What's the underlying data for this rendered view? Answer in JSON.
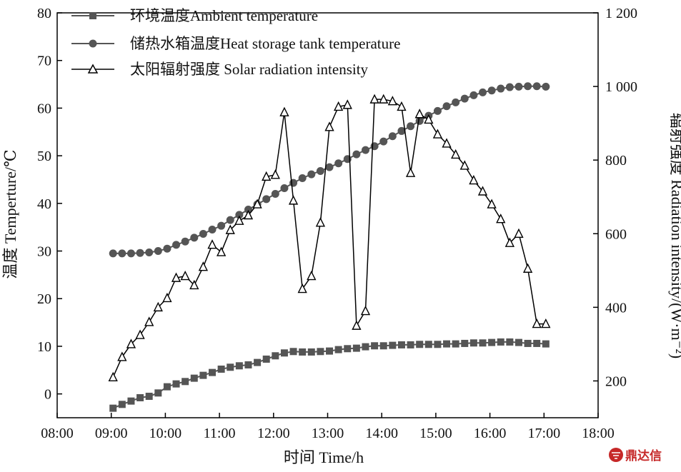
{
  "chart_data": {
    "type": "line",
    "xlabel": "时间 Time/h",
    "ylabel": "温度 Temperture/℃",
    "y2label": "辐射强度 Radiation intensity/(W·m⁻²)",
    "xlim": [
      "08:00",
      "18:00"
    ],
    "ylim": [
      -5,
      80
    ],
    "y2lim": [
      100,
      1200
    ],
    "x_ticks": [
      "08:00",
      "09:00",
      "10:00",
      "11:00",
      "12:00",
      "13:00",
      "14:00",
      "15:00",
      "16:00",
      "17:00",
      "18:00"
    ],
    "y_ticks": [
      0,
      10,
      20,
      30,
      40,
      50,
      60,
      70,
      80
    ],
    "y2_ticks": [
      200,
      400,
      600,
      800,
      "1 000",
      "1 200"
    ],
    "grid": false,
    "legend_position": "top-left",
    "series": [
      {
        "name": "环境温度Ambient temperature",
        "marker": "square",
        "axis": "left",
        "color": "#555555",
        "x": [
          "09:02",
          "09:12",
          "09:22",
          "09:32",
          "09:42",
          "09:52",
          "10:02",
          "10:12",
          "10:22",
          "10:32",
          "10:42",
          "10:52",
          "11:02",
          "11:12",
          "11:22",
          "11:32",
          "11:42",
          "11:52",
          "12:02",
          "12:12",
          "12:22",
          "12:32",
          "12:42",
          "12:52",
          "13:02",
          "13:12",
          "13:22",
          "13:32",
          "13:42",
          "13:52",
          "14:02",
          "14:12",
          "14:22",
          "14:32",
          "14:42",
          "14:52",
          "15:02",
          "15:12",
          "15:22",
          "15:32",
          "15:42",
          "15:52",
          "16:02",
          "16:12",
          "16:22",
          "16:32",
          "16:42",
          "16:52",
          "17:02"
        ],
        "values": [
          -3,
          -2.2,
          -1.5,
          -0.8,
          -0.5,
          0.2,
          1.5,
          2.1,
          2.6,
          3.3,
          3.9,
          4.5,
          5.2,
          5.6,
          5.9,
          6.1,
          6.6,
          7.3,
          8.0,
          8.6,
          8.9,
          8.8,
          8.8,
          8.9,
          9.0,
          9.3,
          9.5,
          9.6,
          9.9,
          10.1,
          10.1,
          10.2,
          10.3,
          10.3,
          10.4,
          10.4,
          10.4,
          10.5,
          10.5,
          10.6,
          10.7,
          10.7,
          10.8,
          10.9,
          10.9,
          10.8,
          10.6,
          10.6,
          10.5
        ]
      },
      {
        "name": "储热水箱温度Heat storage tank temperature",
        "marker": "circle",
        "axis": "left",
        "color": "#555555",
        "x": [
          "09:02",
          "09:12",
          "09:22",
          "09:32",
          "09:42",
          "09:52",
          "10:02",
          "10:12",
          "10:22",
          "10:32",
          "10:42",
          "10:52",
          "11:02",
          "11:12",
          "11:22",
          "11:32",
          "11:42",
          "11:52",
          "12:02",
          "12:12",
          "12:22",
          "12:32",
          "12:42",
          "12:52",
          "13:02",
          "13:12",
          "13:22",
          "13:32",
          "13:42",
          "13:52",
          "14:02",
          "14:12",
          "14:22",
          "14:32",
          "14:42",
          "14:52",
          "15:02",
          "15:12",
          "15:22",
          "15:32",
          "15:42",
          "15:52",
          "16:02",
          "16:12",
          "16:22",
          "16:32",
          "16:42",
          "16:52",
          "17:02"
        ],
        "values": [
          29.5,
          29.5,
          29.5,
          29.6,
          29.7,
          30.0,
          30.5,
          31.3,
          32.0,
          32.8,
          33.6,
          34.5,
          35.3,
          36.5,
          37.6,
          38.7,
          39.8,
          40.9,
          42.0,
          43.2,
          44.3,
          45.3,
          46.1,
          46.8,
          47.6,
          48.4,
          49.3,
          50.3,
          51.2,
          52.0,
          53.0,
          54.1,
          55.2,
          56.2,
          57.3,
          58.4,
          59.4,
          60.4,
          61.2,
          62.0,
          62.7,
          63.3,
          63.7,
          64.1,
          64.4,
          64.5,
          64.6,
          64.6,
          64.5
        ]
      },
      {
        "name": "太阳辐射强度 Solar radiation intensity",
        "marker": "triangle-open",
        "axis": "right",
        "color": "#000000",
        "x": [
          "09:02",
          "09:12",
          "09:22",
          "09:32",
          "09:42",
          "09:52",
          "10:02",
          "10:12",
          "10:22",
          "10:32",
          "10:42",
          "10:52",
          "11:02",
          "11:12",
          "11:22",
          "11:32",
          "11:42",
          "11:52",
          "12:02",
          "12:12",
          "12:22",
          "12:32",
          "12:42",
          "12:52",
          "13:02",
          "13:12",
          "13:22",
          "13:32",
          "13:42",
          "13:52",
          "14:02",
          "14:12",
          "14:22",
          "14:32",
          "14:42",
          "14:52",
          "15:02",
          "15:12",
          "15:22",
          "15:32",
          "15:42",
          "15:52",
          "16:02",
          "16:12",
          "16:22",
          "16:32",
          "16:42",
          "16:52",
          "17:02"
        ],
        "values": [
          210,
          265,
          300,
          325,
          360,
          400,
          425,
          480,
          485,
          460,
          510,
          570,
          550,
          610,
          635,
          650,
          680,
          755,
          760,
          930,
          690,
          450,
          485,
          630,
          890,
          945,
          950,
          350,
          390,
          965,
          965,
          960,
          945,
          765,
          925,
          910,
          870,
          845,
          815,
          785,
          745,
          715,
          680,
          640,
          575,
          600,
          505,
          355,
          355
        ]
      }
    ]
  },
  "watermark": {
    "text": "鼎达信",
    "color": "#c62828",
    "icon": "logo-mark"
  }
}
